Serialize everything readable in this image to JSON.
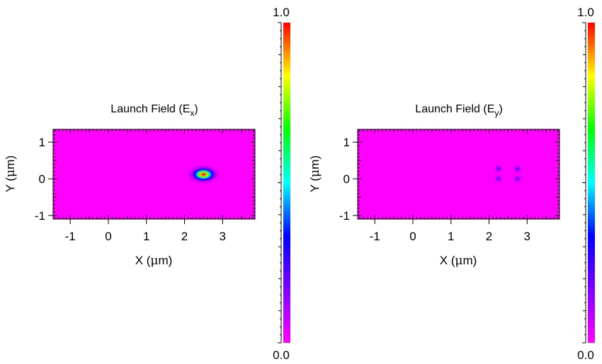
{
  "chart_data": [
    {
      "type": "heatmap",
      "title": {
        "main": "Launch Field (E",
        "sub": "x",
        "close": ")"
      },
      "xlabel": {
        "pre": "X (",
        "mu": "μ",
        "post": "m)"
      },
      "ylabel": {
        "pre": "Y (",
        "mu": "μ",
        "post": "m)"
      },
      "xlim": [
        -1.45,
        3.85
      ],
      "ylim": [
        -1.1,
        1.35
      ],
      "xticks": [
        -1,
        0,
        1,
        2,
        3
      ],
      "yticks": [
        1,
        0,
        -1
      ],
      "xtick_labels": [
        "-1",
        "0",
        "1",
        "2",
        "3"
      ],
      "ytick_labels": [
        "1",
        "0",
        "-1"
      ],
      "background_color": "#ff00ff",
      "peaks": [
        {
          "x": 2.5,
          "y": 0.12,
          "amplitude": 1.0,
          "sx": 0.2,
          "sy": 0.12
        }
      ],
      "colorbar": {
        "min_label": "0.0",
        "max_label": "1.0",
        "min": 0.0,
        "max": 1.0
      }
    },
    {
      "type": "heatmap",
      "title": {
        "main": "Launch Field (E",
        "sub": "y",
        "close": ")"
      },
      "xlabel": {
        "pre": "X (",
        "mu": "μ",
        "post": "m)"
      },
      "ylabel": {
        "pre": "Y (",
        "mu": "μ",
        "post": "m)"
      },
      "xlim": [
        -1.45,
        3.85
      ],
      "ylim": [
        -1.1,
        1.35
      ],
      "xticks": [
        -1,
        0,
        1,
        2,
        3
      ],
      "yticks": [
        1,
        0,
        -1
      ],
      "xtick_labels": [
        "-1",
        "0",
        "1",
        "2",
        "3"
      ],
      "ytick_labels": [
        "1",
        "0",
        "-1"
      ],
      "background_color": "#ff00ff",
      "peaks": [
        {
          "x": 2.25,
          "y": 0.27,
          "amplitude": 0.22,
          "sx": 0.06,
          "sy": 0.06
        },
        {
          "x": 2.75,
          "y": 0.27,
          "amplitude": 0.22,
          "sx": 0.06,
          "sy": 0.06
        },
        {
          "x": 2.25,
          "y": 0.0,
          "amplitude": 0.22,
          "sx": 0.06,
          "sy": 0.06
        },
        {
          "x": 2.75,
          "y": 0.0,
          "amplitude": 0.22,
          "sx": 0.06,
          "sy": 0.06
        }
      ],
      "colorbar": {
        "min_label": "0.0",
        "max_label": "1.0",
        "min": 0.0,
        "max": 1.0
      }
    }
  ],
  "colormap": [
    "#ff00ff",
    "#8000ff",
    "#0000ff",
    "#00ffff",
    "#00ff00",
    "#ffff00",
    "#ff0000"
  ]
}
